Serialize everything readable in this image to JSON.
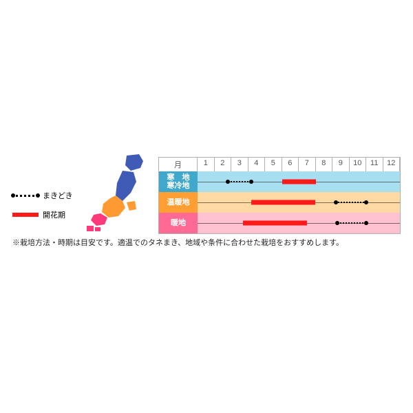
{
  "legend": {
    "sowing": {
      "label": "まきどき",
      "style": "dotted",
      "color": "#000000"
    },
    "bloom": {
      "label": "開花期",
      "style": "solid",
      "color": "#ff1a1a"
    }
  },
  "map": {
    "colors": {
      "cold": "#3f5bb5",
      "temperate": "#ff9a33",
      "warm": "#ff3a7a"
    }
  },
  "chart": {
    "months_label": "月",
    "months": [
      "1",
      "2",
      "3",
      "4",
      "5",
      "6",
      "7",
      "8",
      "9",
      "10",
      "11",
      "12"
    ],
    "header_bg": "#ffffff",
    "header_text": "#666666",
    "rows": [
      {
        "label": "寒　地\n寒冷地",
        "band_color": "#a7dff0",
        "label_bg": "#40a8cc",
        "segments": [
          {
            "type": "sow",
            "start": 2.8,
            "end": 4.2
          },
          {
            "type": "bloom",
            "start": 6.0,
            "end": 8.0
          }
        ]
      },
      {
        "label": "温暖地",
        "band_color": "#ffd9a3",
        "label_bg": "#ff9f33",
        "segments": [
          {
            "type": "bloom",
            "start": 4.2,
            "end": 8.0
          },
          {
            "type": "sow",
            "start": 9.2,
            "end": 11.0
          }
        ]
      },
      {
        "label": "暖地",
        "band_color": "#ffc0cf",
        "label_bg": "#ff6a94",
        "segments": [
          {
            "type": "bloom",
            "start": 3.7,
            "end": 7.5
          },
          {
            "type": "sow",
            "start": 9.3,
            "end": 11.0
          }
        ]
      }
    ]
  },
  "note": "※栽培方法・時期は目安です。適温でのタネまき、地域や条件に合わせた栽培をおすすめします。",
  "bloom_color": "#ff1a1a"
}
